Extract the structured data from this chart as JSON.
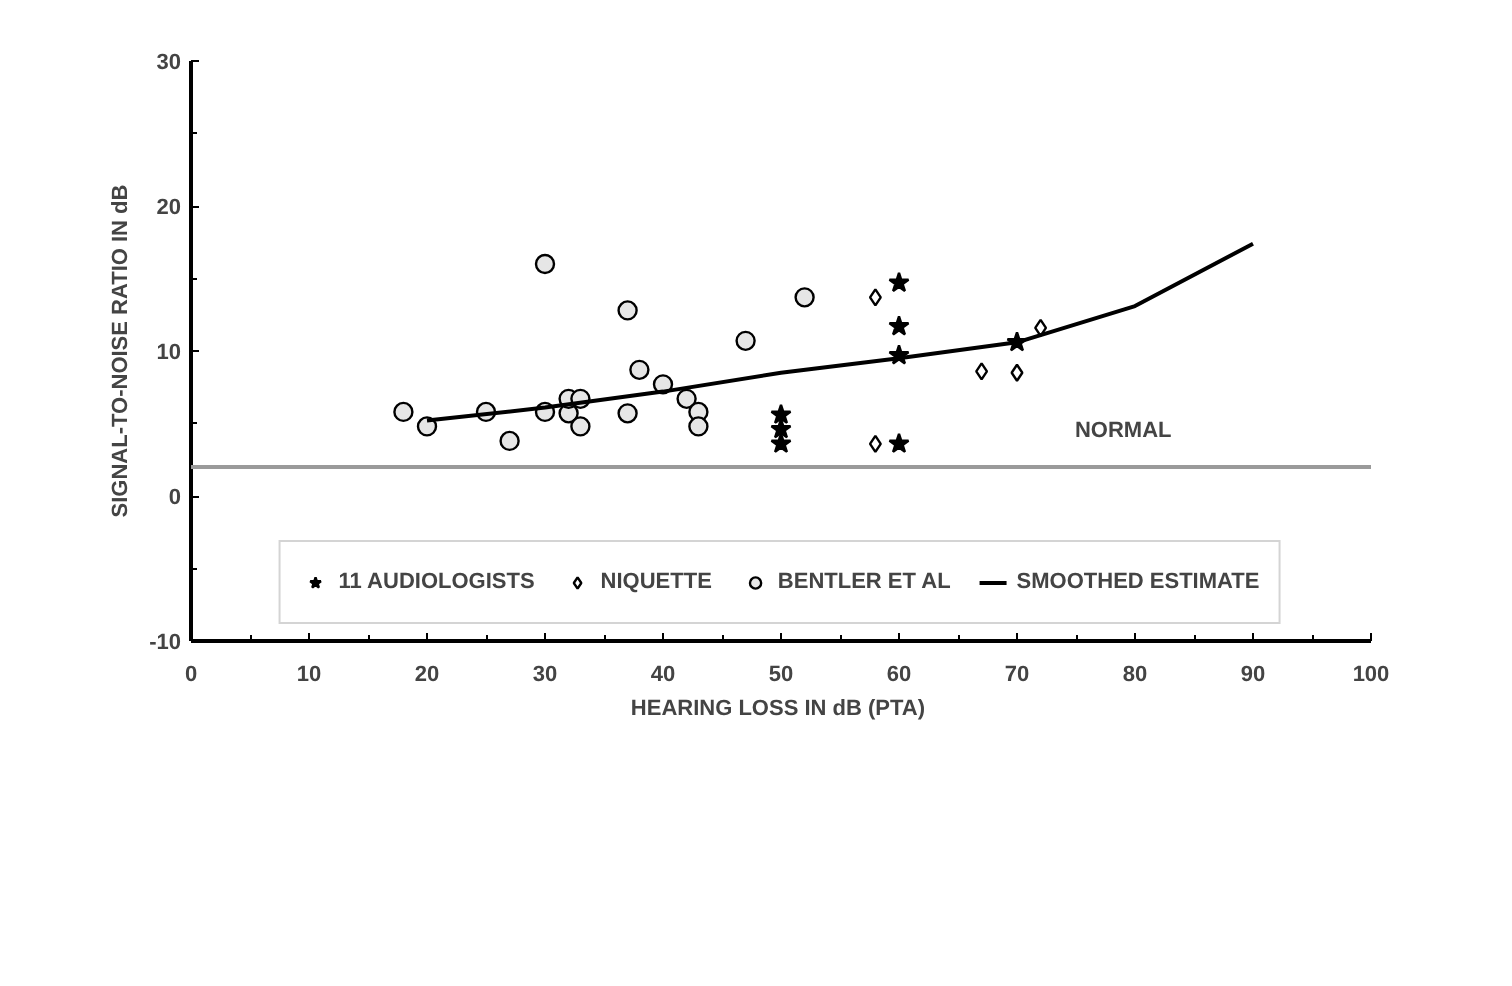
{
  "chart_data": {
    "type": "scatter",
    "xlabel": "HEARING LOSS IN dB  (PTA)",
    "ylabel": "SIGNAL-TO-NOISE RATIO IN dB",
    "xlim": [
      0,
      100
    ],
    "xticks": [
      0,
      10,
      20,
      30,
      40,
      50,
      60,
      70,
      80,
      90,
      100
    ],
    "ylim": [
      -10,
      30
    ],
    "yticks": [
      -10,
      0,
      10,
      20,
      30
    ],
    "grid": false,
    "legend": "bottom",
    "series": [
      {
        "name": "11 AUDIOLOGISTS",
        "marker": "star",
        "color": "#000000",
        "x": [
          50,
          50,
          50,
          60,
          60,
          60,
          60,
          70
        ],
        "values": [
          5.6,
          4.6,
          3.6,
          3.6,
          9.7,
          11.7,
          14.7,
          10.6
        ]
      },
      {
        "name": "NIQUETTE",
        "marker": "diamond",
        "color": "#000000",
        "x": [
          58,
          58,
          67,
          70,
          72
        ],
        "values": [
          13.7,
          3.6,
          8.6,
          8.5,
          11.6
        ]
      },
      {
        "name": "BENTLER ET AL",
        "marker": "circle",
        "color": "#000000",
        "x": [
          18,
          20,
          25,
          27,
          30,
          30,
          32,
          32,
          33,
          33,
          37,
          37,
          38,
          40,
          42,
          43,
          43,
          47,
          52
        ],
        "values": [
          5.8,
          4.8,
          5.8,
          3.8,
          5.8,
          16,
          5.7,
          6.7,
          6.7,
          4.8,
          5.7,
          12.8,
          8.7,
          7.7,
          6.7,
          5.8,
          4.8,
          10.7,
          13.7
        ]
      },
      {
        "name": "SMOOTHED ESTIMATE",
        "type": "line",
        "marker": "none",
        "color": "#000000",
        "x": [
          20,
          30,
          40,
          50,
          60,
          70,
          80,
          90
        ],
        "values": [
          5.2,
          6.1,
          7.2,
          8.5,
          9.5,
          10.6,
          13.1,
          17.4
        ]
      }
    ],
    "ref_lines": [
      {
        "axis": "y",
        "value": 2,
        "label": "NORMAL",
        "color": "#9a9a9a"
      }
    ]
  }
}
